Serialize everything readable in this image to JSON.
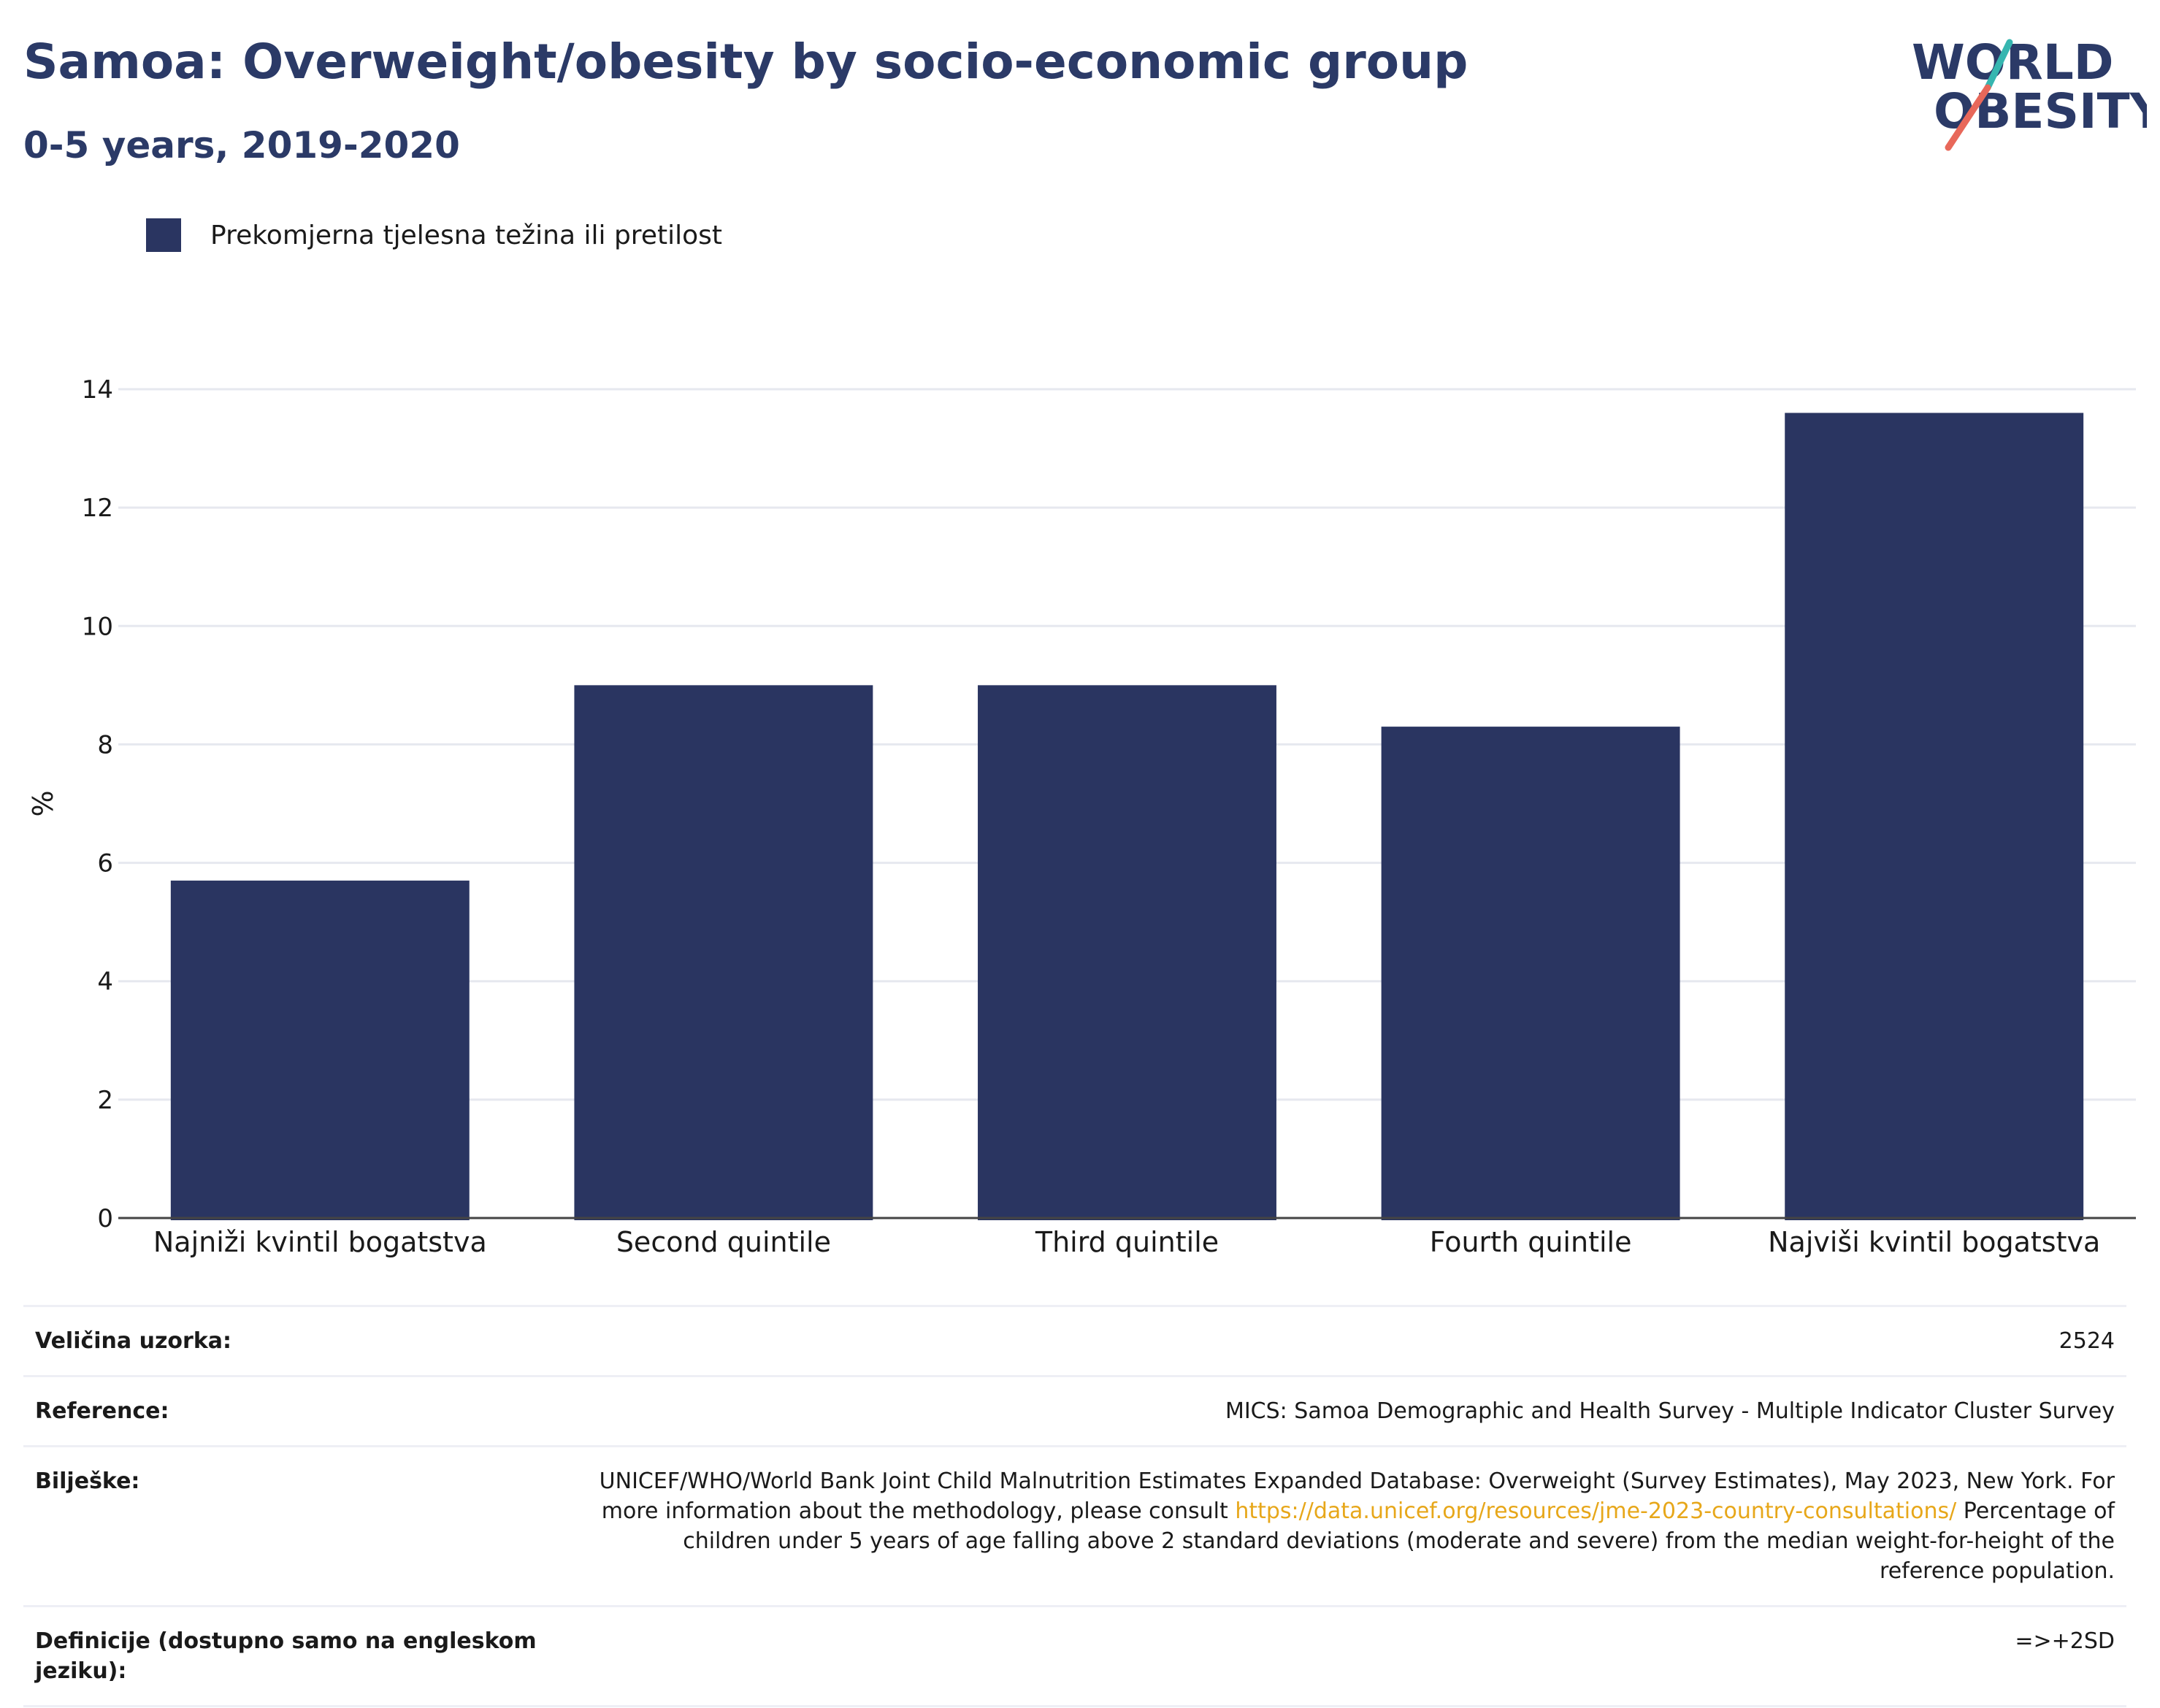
{
  "header": {
    "title": "Samoa: Overweight/obesity by socio-economic group",
    "subtitle": "0-5 years, 2019-2020"
  },
  "logo": {
    "line1": "WORLD",
    "line2": "OBESITY",
    "accent_teal": "#36b6b0",
    "accent_coral": "#e8685a",
    "text_color": "#2b3a67"
  },
  "legend": {
    "items": [
      {
        "label": "Prekomjerna tjelesna težina ili pretilost",
        "color": "#2a3561"
      }
    ]
  },
  "chart_data": {
    "type": "bar",
    "categories": [
      "Najniži kvintil bogatstva",
      "Second quintile",
      "Third quintile",
      "Fourth quintile",
      "Najviši kvintil bogatstva"
    ],
    "series": [
      {
        "name": "Prekomjerna tjelesna težina ili pretilost",
        "values": [
          5.7,
          9.0,
          9.0,
          8.3,
          13.6
        ],
        "color": "#2a3561"
      }
    ],
    "ylabel": "%",
    "xlabel": "",
    "ylim": [
      0,
      14
    ],
    "yticks": [
      0,
      2,
      4,
      6,
      8,
      10,
      12,
      14
    ],
    "grid": true,
    "legend_position": "top-left"
  },
  "info": {
    "rows": [
      {
        "key": "Veličina uzorka:",
        "value": "2524"
      },
      {
        "key": "Reference:",
        "value": "MICS: Samoa Demographic and Health Survey - Multiple Indicator Cluster Survey"
      },
      {
        "key": "Bilješke:",
        "value_pre": "UNICEF/WHO/World Bank Joint Child Malnutrition Estimates Expanded Database: Overweight (Survey Estimates), May 2023, New York. For more information about the methodology, please consult ",
        "link": "https://data.unicef.org/resources/jme-2023-country-consultations/",
        "value_post": " Percentage of children under 5 years of age falling above 2 standard deviations (moderate and severe) from the median weight-for-height of the reference population."
      },
      {
        "key": "Definicije (dostupno samo na engleskom jeziku):",
        "value": "=>+2SD"
      }
    ]
  }
}
